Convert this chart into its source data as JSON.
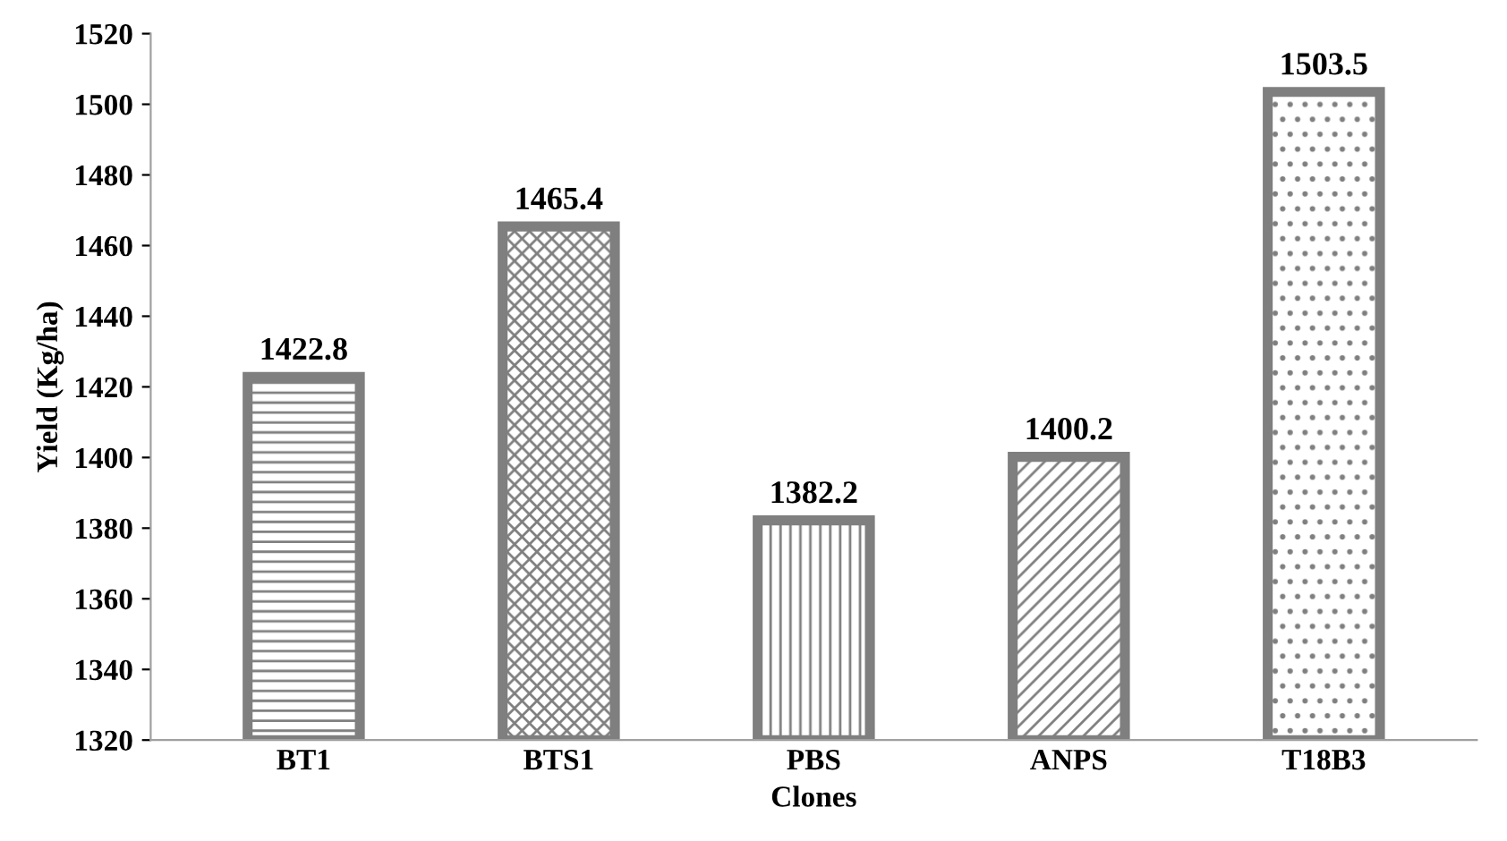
{
  "chart_data": {
    "type": "bar",
    "xlabel": "Clones",
    "ylabel": "Yield (Kg/ha)",
    "categories": [
      "BT1",
      "BTS1",
      "PBS",
      "ANPS",
      "T18B3"
    ],
    "values": [
      1422.8,
      1465.4,
      1382.2,
      1400.2,
      1503.5
    ],
    "color": "#7f7f7f",
    "ylim": [
      1320,
      1520
    ],
    "yticks": [
      1320,
      1340,
      1360,
      1380,
      1400,
      1420,
      1440,
      1460,
      1480,
      1500,
      1520
    ],
    "data_labels": true
  }
}
